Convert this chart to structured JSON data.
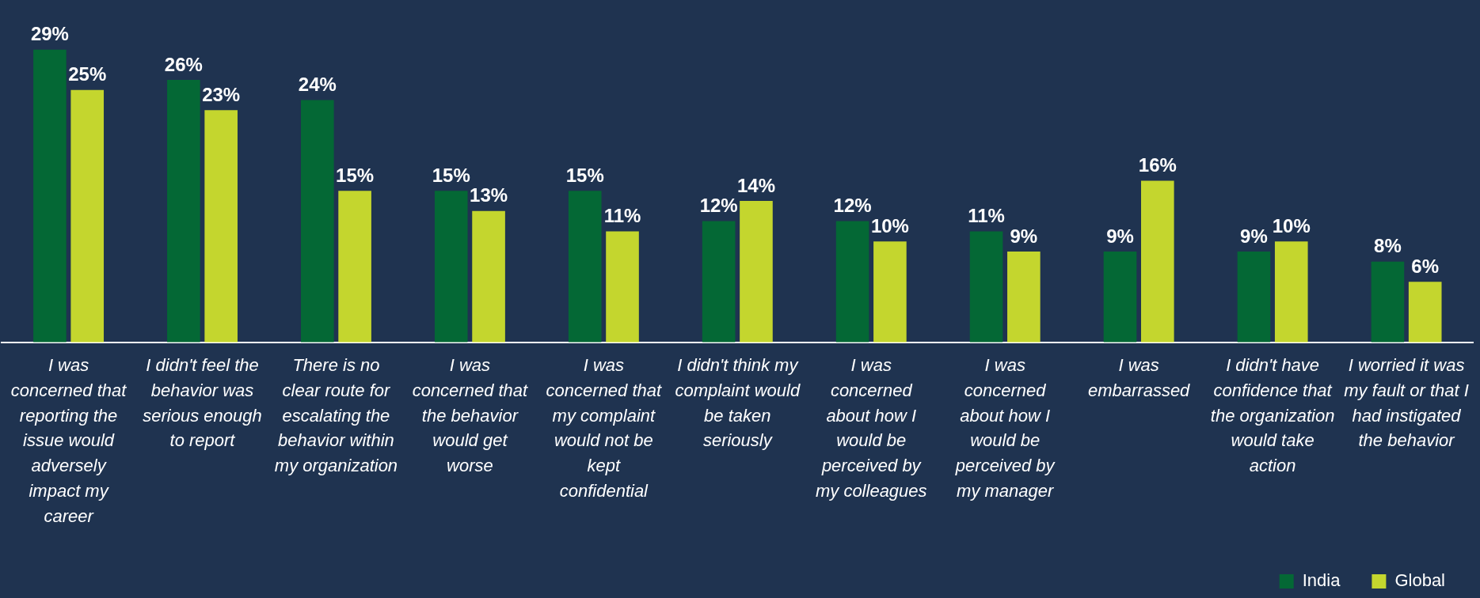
{
  "chart_data": {
    "type": "bar",
    "categories": [
      "I was concerned that reporting the issue would adversely impact my career",
      "I didn't feel the behavior was serious enough to report",
      "There is no clear route for escalating the behavior within my organization",
      "I was concerned that the behavior would get worse",
      "I was concerned that my complaint would not be kept confidential",
      "I didn't think my complaint would be taken seriously",
      "I was concerned about how I would be perceived by my colleagues",
      "I was concerned about how I would be perceived by my manager",
      "I was embarrassed",
      "I didn't have confidence that the organization would take action",
      "I worried it was my fault or that I had instigated the behavior"
    ],
    "series": [
      {
        "name": "India",
        "color": "#046835",
        "values": [
          29,
          26,
          24,
          15,
          15,
          12,
          12,
          11,
          9,
          9,
          8
        ],
        "value_labels": [
          "29%",
          "26%",
          "24%",
          "15%",
          "15%",
          "12%",
          "12%",
          "11%",
          "9%",
          "9%",
          "8%"
        ]
      },
      {
        "name": "Global",
        "color": "#c4d62e",
        "values": [
          25,
          23,
          15,
          13,
          11,
          14,
          10,
          9,
          16,
          10,
          6
        ],
        "value_labels": [
          "25%",
          "23%",
          "15%",
          "13%",
          "11%",
          "14%",
          "10%",
          "9%",
          "16%",
          "10%",
          "6%"
        ]
      }
    ],
    "legend": "bottom right",
    "grid": false
  }
}
